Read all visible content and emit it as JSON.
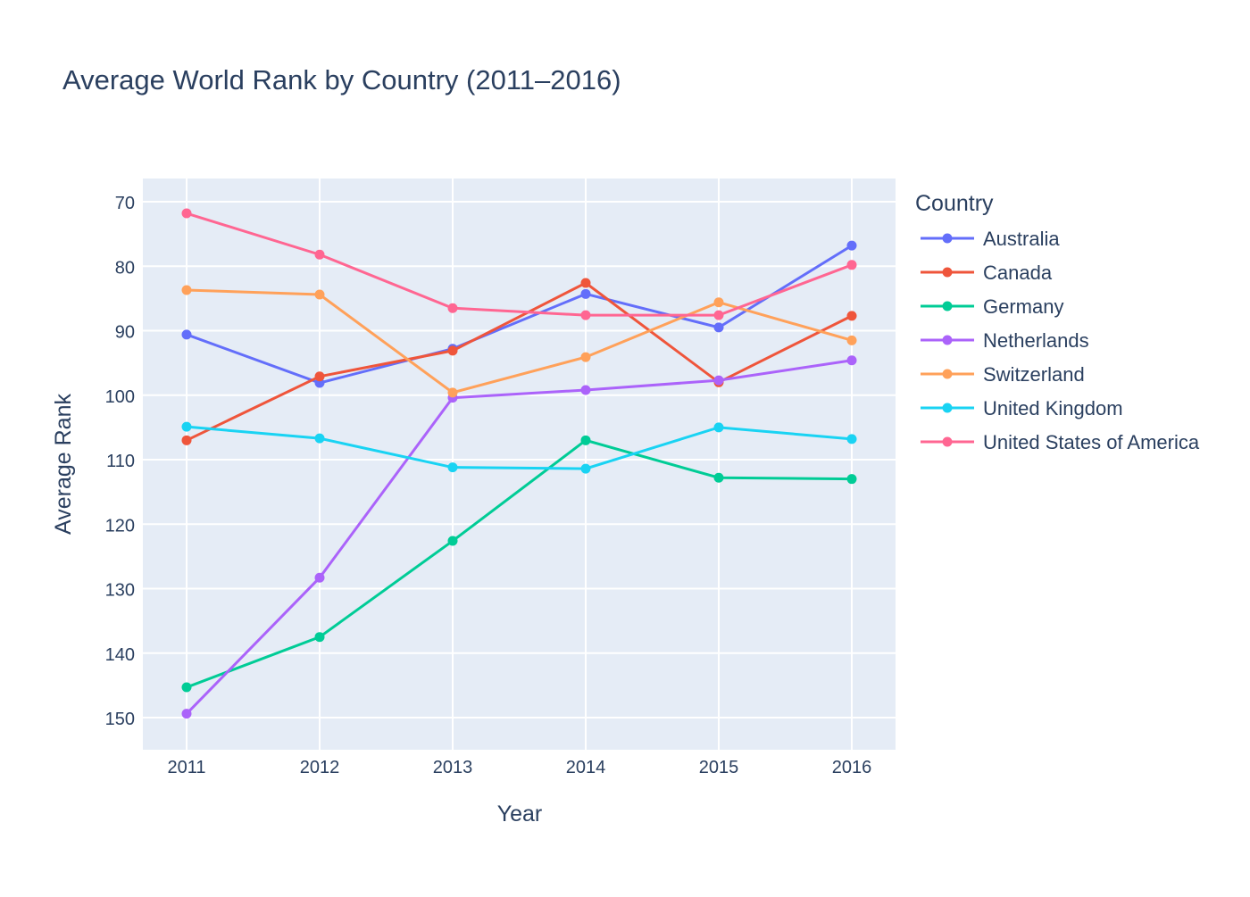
{
  "chart_data": {
    "type": "line",
    "title": "Average World Rank by Country (2011–2016)",
    "xlabel": "Year",
    "ylabel": "Average Rank",
    "x": [
      2011,
      2012,
      2013,
      2014,
      2015,
      2016
    ],
    "x_tick_labels": [
      "2011",
      "2012",
      "2013",
      "2014",
      "2015",
      "2016"
    ],
    "y_ticks": [
      70,
      80,
      90,
      100,
      110,
      120,
      130,
      140,
      150
    ],
    "y_tick_labels": [
      "70",
      "80",
      "90",
      "100",
      "110",
      "120",
      "130",
      "140",
      "150"
    ],
    "ylim": [
      155,
      66.4
    ],
    "y_reversed": true,
    "grid": true,
    "legend_title": "Country",
    "legend_position": "right",
    "series": [
      {
        "name": "Australia",
        "color": "#636efa",
        "values": [
          90.6,
          98.1,
          92.8,
          84.3,
          89.5,
          76.8
        ]
      },
      {
        "name": "Canada",
        "color": "#EF553B",
        "values": [
          107.0,
          97.1,
          93.1,
          82.6,
          98.0,
          87.7
        ]
      },
      {
        "name": "Germany",
        "color": "#00cc96",
        "values": [
          145.3,
          137.5,
          122.6,
          107.0,
          112.8,
          113.0
        ]
      },
      {
        "name": "Netherlands",
        "color": "#ab63fa",
        "values": [
          149.4,
          128.3,
          100.4,
          99.2,
          97.7,
          94.6
        ]
      },
      {
        "name": "Switzerland",
        "color": "#FFA15A",
        "values": [
          83.7,
          84.4,
          99.6,
          94.1,
          85.6,
          91.5
        ]
      },
      {
        "name": "United Kingdom",
        "color": "#19d3f3",
        "values": [
          104.9,
          106.7,
          111.2,
          111.4,
          105.0,
          106.8
        ]
      },
      {
        "name": "United States of America",
        "color": "#FF6692",
        "values": [
          71.8,
          78.2,
          86.5,
          87.6,
          87.6,
          79.8
        ]
      }
    ]
  }
}
